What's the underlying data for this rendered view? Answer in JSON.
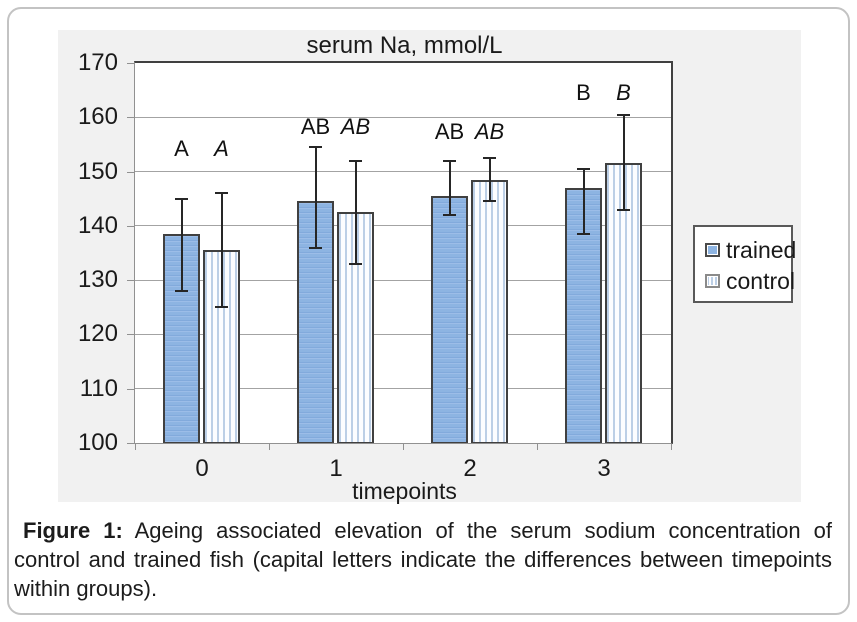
{
  "figure": {
    "caption_label": "Figure 1:",
    "caption_text": "Ageing associated elevation of the serum sodium concentration of control and trained fish (capital letters indicate the differences between timepoints within groups)."
  },
  "chart_data": {
    "type": "bar",
    "title": "serum Na, mmol/L",
    "xlabel": "timepoints",
    "categories": [
      "0",
      "1",
      "2",
      "3"
    ],
    "ylim": [
      100,
      170
    ],
    "yticks": [
      100,
      110,
      120,
      130,
      140,
      150,
      160,
      170
    ],
    "grid": true,
    "legend_position": "right",
    "series": [
      {
        "name": "trained",
        "style": "solid-blue",
        "values": [
          138.5,
          144.5,
          145.5,
          147
        ],
        "err_hi": [
          145,
          154.5,
          152,
          150.5
        ],
        "err_lo": [
          128,
          136,
          142,
          138.5
        ],
        "letters": [
          "A",
          "AB",
          "AB",
          "B"
        ]
      },
      {
        "name": "control",
        "style": "vertical-stripes",
        "values": [
          135.5,
          142.5,
          148.5,
          151.5
        ],
        "err_hi": [
          146,
          152,
          152.5,
          160.5
        ],
        "err_lo": [
          125,
          133,
          144.5,
          143
        ],
        "letters": [
          "A",
          "AB",
          "AB",
          "B"
        ]
      }
    ],
    "letters_y": [
      154.2,
      158.2,
      157.2,
      164.5
    ]
  },
  "colors": {
    "chart_bg": "#f1f1f1",
    "trained_fill": "#8db4e2",
    "trained_light": "#9cbde8",
    "trained_dark": "#82aadc",
    "control_stripe": "#bccfe6",
    "control_bg": "#fcfdff",
    "bar_border": "#404040",
    "grid_line": "#a3a3a3",
    "frame_dark": "#404040",
    "axis_line": "#919191",
    "error_bar": "#262626",
    "legend_border": "#595959"
  }
}
